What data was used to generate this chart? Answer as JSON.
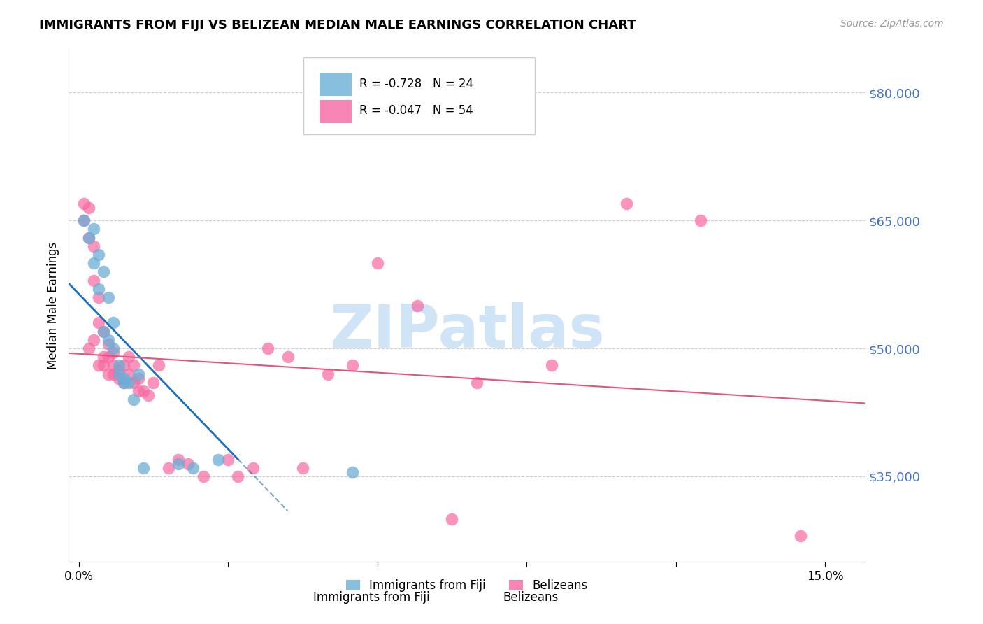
{
  "title": "IMMIGRANTS FROM FIJI VS BELIZEAN MEDIAN MALE EARNINGS CORRELATION CHART",
  "source": "Source: ZipAtlas.com",
  "ylabel": "Median Male Earnings",
  "xlabel_ticks": [
    0.0,
    0.03,
    0.06,
    0.09,
    0.12,
    0.15
  ],
  "xlabel_labels": [
    "0.0%",
    "",
    "",
    "",
    "",
    "15.0%"
  ],
  "ytick_positions": [
    35000,
    50000,
    65000,
    80000
  ],
  "ytick_labels": [
    "$35,000",
    "$50,000",
    "$65,000",
    "$80,000"
  ],
  "ymin": 25000,
  "ymax": 85000,
  "xmin": -0.002,
  "xmax": 0.158,
  "fiji_R": -0.728,
  "fiji_N": 24,
  "belize_R": -0.047,
  "belize_N": 54,
  "fiji_color": "#6baed6",
  "belize_color": "#f768a1",
  "fiji_trend_color": "#1a6fbd",
  "belize_trend_color": "#e8527a",
  "fiji_x": [
    0.001,
    0.002,
    0.003,
    0.003,
    0.004,
    0.004,
    0.005,
    0.005,
    0.006,
    0.006,
    0.007,
    0.007,
    0.008,
    0.008,
    0.009,
    0.009,
    0.01,
    0.011,
    0.012,
    0.013,
    0.02,
    0.023,
    0.028,
    0.055
  ],
  "fiji_y": [
    65000,
    63000,
    64000,
    60000,
    61000,
    57000,
    59000,
    52000,
    56000,
    51000,
    53000,
    50000,
    48000,
    47000,
    46000,
    46500,
    46000,
    44000,
    47000,
    36000,
    36500,
    36000,
    37000,
    35500
  ],
  "belize_x": [
    0.001,
    0.001,
    0.002,
    0.002,
    0.002,
    0.003,
    0.003,
    0.003,
    0.004,
    0.004,
    0.004,
    0.005,
    0.005,
    0.005,
    0.006,
    0.006,
    0.006,
    0.007,
    0.007,
    0.007,
    0.008,
    0.008,
    0.009,
    0.009,
    0.01,
    0.01,
    0.011,
    0.011,
    0.012,
    0.012,
    0.013,
    0.014,
    0.015,
    0.016,
    0.018,
    0.02,
    0.022,
    0.025,
    0.03,
    0.032,
    0.035,
    0.038,
    0.042,
    0.045,
    0.05,
    0.055,
    0.06,
    0.068,
    0.075,
    0.08,
    0.095,
    0.11,
    0.125,
    0.145
  ],
  "belize_y": [
    67000,
    65000,
    66500,
    63000,
    50000,
    62000,
    58000,
    51000,
    56000,
    53000,
    48000,
    52000,
    49000,
    48000,
    50500,
    49000,
    47000,
    49500,
    48000,
    47000,
    46500,
    47500,
    48000,
    46000,
    49000,
    47000,
    48000,
    46000,
    46500,
    45000,
    45000,
    44500,
    46000,
    48000,
    36000,
    37000,
    36500,
    35000,
    37000,
    35000,
    36000,
    50000,
    49000,
    36000,
    47000,
    48000,
    60000,
    55000,
    30000,
    46000,
    48000,
    67000,
    65000,
    28000
  ],
  "watermark": "ZIPatlas",
  "watermark_color": "#d0e4f7",
  "background_color": "#ffffff",
  "grid_color": "#cccccc"
}
